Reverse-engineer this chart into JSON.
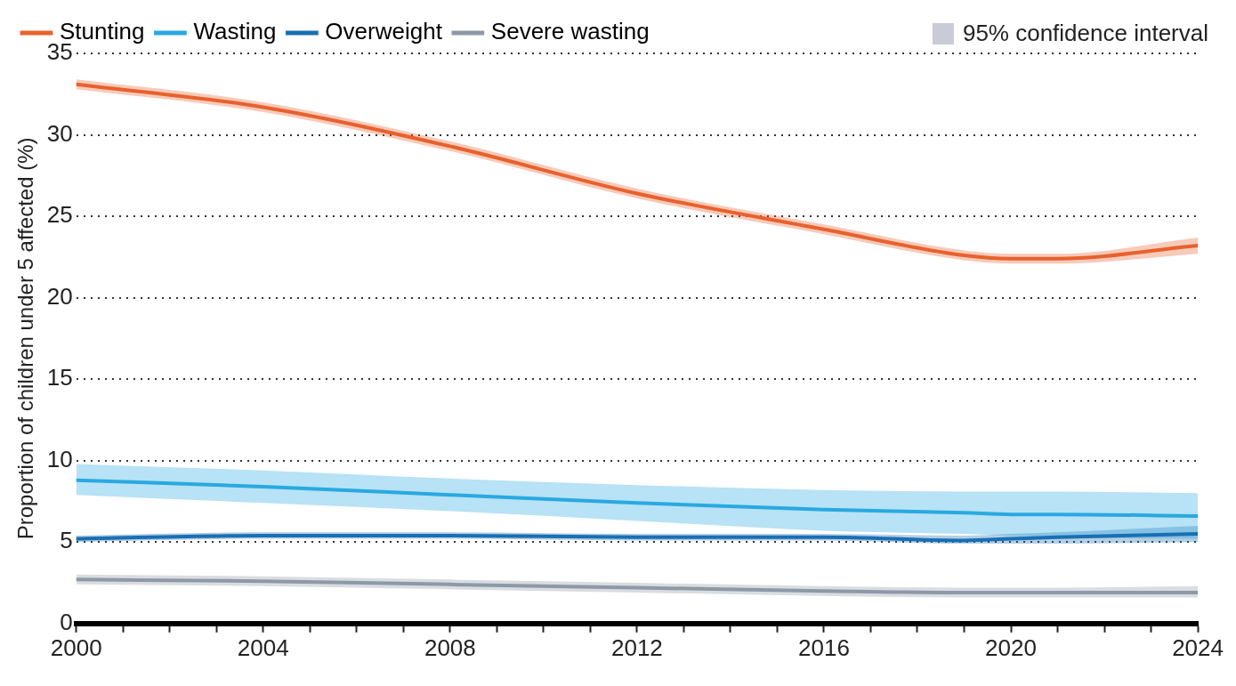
{
  "chart_data": {
    "type": "line",
    "ylabel": "Proportion of children under 5 affected (%)",
    "xlim": [
      2000,
      2024
    ],
    "xticks": [
      2000,
      {
        "value": 2001,
        "label": null
      },
      {
        "value": 2002,
        "label": null
      },
      {
        "value": 2003,
        "label": null
      },
      2004,
      {
        "value": 2005,
        "label": null
      },
      {
        "value": 2006,
        "label": null
      },
      {
        "value": 2007,
        "label": null
      },
      2008,
      {
        "value": 2009,
        "label": null
      },
      {
        "value": 2010,
        "label": null
      },
      {
        "value": 2011,
        "label": null
      },
      2012,
      {
        "value": 2013,
        "label": null
      },
      {
        "value": 2014,
        "label": null
      },
      {
        "value": 2015,
        "label": null
      },
      2016,
      {
        "value": 2017,
        "label": null
      },
      {
        "value": 2018,
        "label": null
      },
      {
        "value": 2019,
        "label": null
      },
      2020,
      {
        "value": 2021,
        "label": null
      },
      {
        "value": 2022,
        "label": null
      },
      {
        "value": 2023,
        "label": null
      },
      2024
    ],
    "ylim": [
      0,
      35
    ],
    "yticks": [
      0,
      5,
      10,
      15,
      20,
      25,
      30,
      35
    ],
    "grid": "y",
    "legend": "top left",
    "line_style": "solid",
    "marker": "none",
    "annotations": [
      "95% confidence interval"
    ],
    "x": [
      2000,
      2004,
      2008,
      2012,
      2016,
      2019,
      2020,
      2021,
      2024
    ],
    "series": [
      {
        "name": "Stunting",
        "color": "#e8612c",
        "values": [
          33.1,
          31.7,
          29.3,
          26.4,
          24.2,
          22.6,
          22.4,
          22.4,
          23.2
        ],
        "lower": [
          32.8,
          31.4,
          29.0,
          26.1,
          23.9,
          22.3,
          22.1,
          22.1,
          22.7
        ],
        "upper": [
          33.4,
          32.0,
          29.6,
          26.7,
          24.5,
          22.9,
          22.7,
          22.7,
          23.7
        ]
      },
      {
        "name": "Wasting",
        "color": "#29a9e1",
        "values": [
          8.8,
          8.4,
          7.9,
          7.4,
          7.0,
          6.8,
          6.7,
          6.7,
          6.6
        ],
        "lower": [
          7.9,
          7.4,
          6.9,
          6.3,
          5.7,
          5.5,
          5.4,
          5.3,
          5.2
        ],
        "upper": [
          9.8,
          9.4,
          8.9,
          8.5,
          8.2,
          8.1,
          8.1,
          8.1,
          8.0
        ],
        "type": "line"
      },
      {
        "name": "Overweight",
        "color": "#1a6fb3",
        "values": [
          5.2,
          5.4,
          5.4,
          5.3,
          5.3,
          5.1,
          5.2,
          5.3,
          5.5
        ],
        "lower": [
          5.0,
          5.2,
          5.2,
          5.1,
          5.1,
          4.9,
          4.9,
          4.9,
          5.0
        ],
        "upper": [
          5.4,
          5.6,
          5.6,
          5.5,
          5.5,
          5.4,
          5.5,
          5.6,
          6.0
        ]
      },
      {
        "name": "Severe wasting",
        "color": "#8e99a6",
        "values": [
          2.7,
          2.6,
          2.4,
          2.2,
          2.0,
          1.9,
          1.9,
          1.9,
          1.9
        ],
        "lower": [
          2.4,
          2.3,
          2.1,
          1.9,
          1.7,
          1.6,
          1.6,
          1.6,
          1.6
        ],
        "upper": [
          3.0,
          2.9,
          2.7,
          2.5,
          2.3,
          2.2,
          2.2,
          2.2,
          2.3
        ]
      }
    ]
  }
}
